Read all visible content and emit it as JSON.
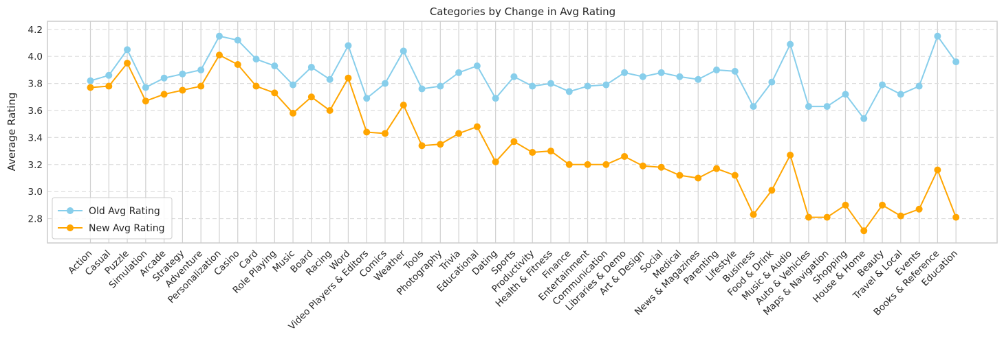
{
  "chart_data": {
    "type": "line",
    "title": "Categories by Change in Avg Rating",
    "xlabel": "",
    "ylabel": "Average Rating",
    "ylim": [
      2.62,
      4.26
    ],
    "yticks": [
      "2.8",
      "3.0",
      "3.2",
      "3.4",
      "3.6",
      "3.8",
      "4.0",
      "4.2"
    ],
    "grid": true,
    "legend_position": "lower-left",
    "categories": [
      "Action",
      "Casual",
      "Puzzle",
      "Simulation",
      "Arcade",
      "Strategy",
      "Adventure",
      "Personalization",
      "Casino",
      "Card",
      "Role Playing",
      "Music",
      "Board",
      "Racing",
      "Word",
      "Video Players & Editors",
      "Comics",
      "Weather",
      "Tools",
      "Photography",
      "Trivia",
      "Educational",
      "Dating",
      "Sports",
      "Productivity",
      "Health & Fitness",
      "Finance",
      "Entertainment",
      "Communication",
      "Libraries & Demo",
      "Art & Design",
      "Social",
      "Medical",
      "News & Magazines",
      "Parenting",
      "Lifestyle",
      "Business",
      "Food & Drink",
      "Music & Audio",
      "Auto & Vehicles",
      "Maps & Navigation",
      "Shopping",
      "House & Home",
      "Beauty",
      "Travel & Local",
      "Events",
      "Books & Reference",
      "Education"
    ],
    "series": [
      {
        "name": "Old Avg Rating",
        "color": "#87ceeb",
        "values": [
          3.82,
          3.86,
          4.05,
          3.77,
          3.84,
          3.87,
          3.9,
          4.15,
          4.12,
          3.98,
          3.93,
          3.79,
          3.92,
          3.83,
          4.08,
          3.69,
          3.8,
          4.04,
          3.76,
          3.78,
          3.88,
          3.93,
          3.69,
          3.85,
          3.78,
          3.8,
          3.74,
          3.78,
          3.79,
          3.88,
          3.85,
          3.88,
          3.85,
          3.83,
          3.9,
          3.89,
          3.63,
          3.81,
          4.09,
          3.63,
          3.63,
          3.72,
          3.54,
          3.79,
          3.72,
          3.78,
          4.15,
          3.96
        ]
      },
      {
        "name": "New Avg Rating",
        "color": "#ffa500",
        "values": [
          3.77,
          3.78,
          3.95,
          3.67,
          3.72,
          3.75,
          3.78,
          4.01,
          3.94,
          3.78,
          3.73,
          3.58,
          3.7,
          3.6,
          3.84,
          3.44,
          3.43,
          3.64,
          3.34,
          3.35,
          3.43,
          3.48,
          3.22,
          3.37,
          3.29,
          3.3,
          3.2,
          3.2,
          3.2,
          3.26,
          3.19,
          3.18,
          3.12,
          3.1,
          3.17,
          3.12,
          2.83,
          3.01,
          3.27,
          2.81,
          2.81,
          2.9,
          2.71,
          2.9,
          2.82,
          2.87,
          3.16,
          2.81
        ]
      }
    ]
  }
}
